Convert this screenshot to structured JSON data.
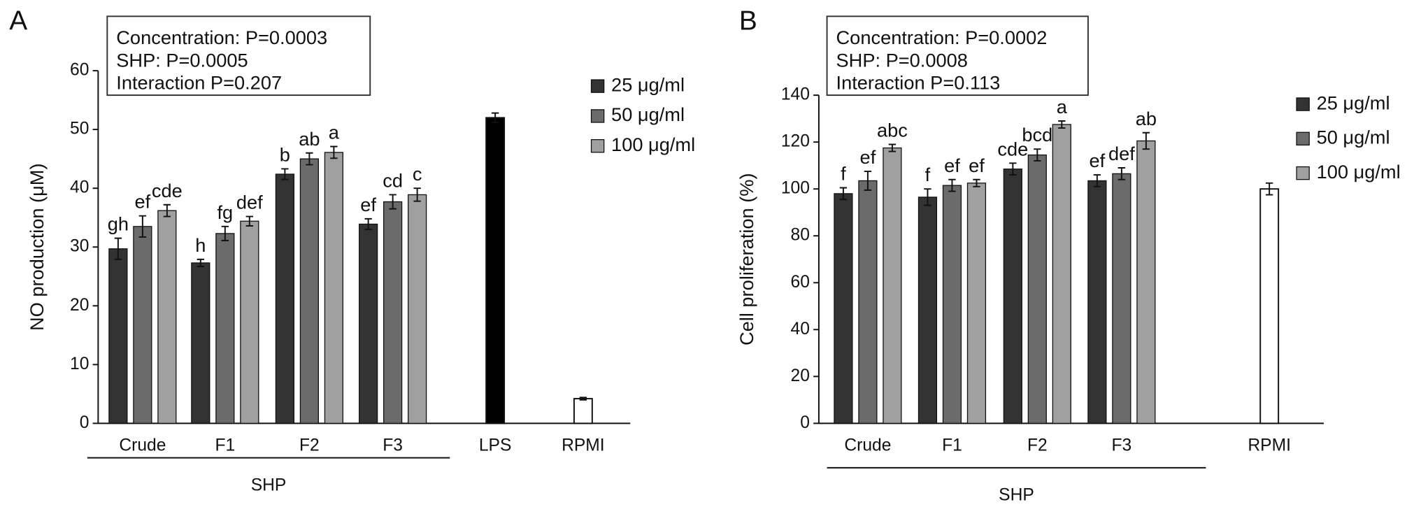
{
  "chart_data": [
    {
      "type": "bar",
      "panel": "A",
      "stats": [
        "Concentration: P=0.0003",
        "SHP: P=0.0005",
        "Interaction P=0.207"
      ],
      "y_label": "NO production (μM)",
      "group_label": "SHP",
      "categories": [
        "Crude",
        "F1",
        "F2",
        "F3",
        "LPS",
        "RPMI"
      ],
      "series": [
        {
          "name": "25 μg/ml",
          "color": "#333333",
          "values": [
            29.7,
            27.3,
            42.4,
            33.9,
            null,
            null
          ],
          "errors": [
            1.8,
            0.6,
            0.9,
            0.9,
            null,
            null
          ],
          "letters": [
            "gh",
            "h",
            "b",
            "ef",
            null,
            null
          ]
        },
        {
          "name": "50 μg/ml",
          "color": "#6b6b6b",
          "values": [
            33.5,
            32.3,
            45.0,
            37.7,
            null,
            null
          ],
          "errors": [
            1.8,
            1.2,
            1.0,
            1.2,
            null,
            null
          ],
          "letters": [
            "ef",
            "fg",
            "ab",
            "cd",
            null,
            null
          ]
        },
        {
          "name": "100 μg/ml",
          "color": "#a0a0a0",
          "values": [
            36.2,
            34.4,
            46.1,
            38.9,
            null,
            null
          ],
          "errors": [
            1.0,
            0.8,
            1.0,
            1.1,
            null,
            null
          ],
          "letters": [
            "cde",
            "def",
            "a",
            "c",
            null,
            null
          ]
        }
      ],
      "control_values": [
        null,
        null,
        null,
        null,
        52.0,
        4.2
      ],
      "control_errors": [
        null,
        null,
        null,
        null,
        0.8,
        0.2
      ],
      "control_colors": [
        null,
        null,
        null,
        null,
        "#000000",
        "#ffffff"
      ],
      "ylim": [
        0,
        60
      ],
      "yticks": [
        0,
        10,
        20,
        30,
        40,
        50,
        60
      ]
    },
    {
      "type": "bar",
      "panel": "B",
      "stats": [
        "Concentration: P=0.0002",
        "SHP: P=0.0008",
        "Interaction P=0.113"
      ],
      "y_label": "Cell proliferation (%)",
      "group_label": "SHP",
      "categories": [
        "Crude",
        "F1",
        "F2",
        "F3",
        "RPMI"
      ],
      "series": [
        {
          "name": "25 μg/ml",
          "color": "#333333",
          "values": [
            98,
            96.5,
            108.5,
            103.5,
            null
          ],
          "errors": [
            2.5,
            3.5,
            2.5,
            2.5,
            null
          ],
          "letters": [
            "f",
            "f",
            "cde",
            "ef",
            null
          ]
        },
        {
          "name": "50 μg/ml",
          "color": "#6b6b6b",
          "values": [
            103.5,
            101.5,
            114.5,
            106.5,
            null
          ],
          "errors": [
            4,
            2.5,
            2.5,
            2.5,
            null
          ],
          "letters": [
            "ef",
            "ef",
            "bcd",
            "def",
            null
          ]
        },
        {
          "name": "100 μg/ml",
          "color": "#a0a0a0",
          "values": [
            117.5,
            102.5,
            127.5,
            120.5,
            null
          ],
          "errors": [
            1.5,
            1.5,
            1.5,
            3.5,
            null
          ],
          "letters": [
            "abc",
            "ef",
            "a",
            "ab",
            null
          ]
        }
      ],
      "control_values": [
        null,
        null,
        null,
        null,
        100
      ],
      "control_errors": [
        null,
        null,
        null,
        null,
        2.5
      ],
      "control_colors": [
        null,
        null,
        null,
        null,
        "#ffffff"
      ],
      "ylim": [
        0,
        140
      ],
      "yticks": [
        0,
        20,
        40,
        60,
        80,
        100,
        120,
        140
      ]
    }
  ]
}
